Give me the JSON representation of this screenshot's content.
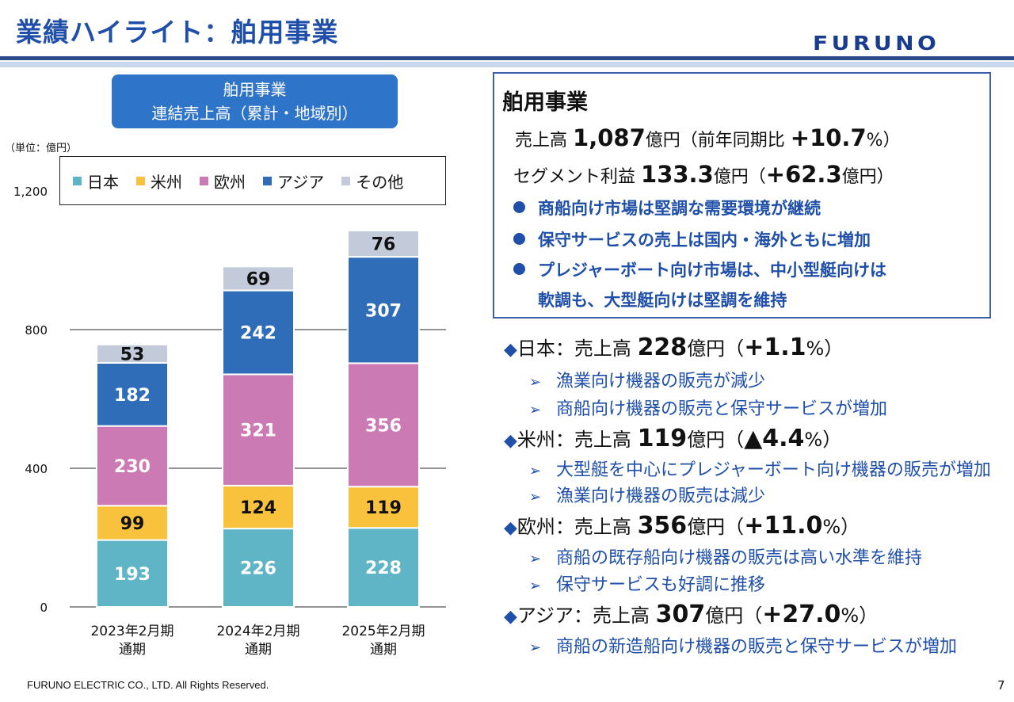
{
  "header": {
    "title": "業績ハイライト：舶用事業",
    "logo_text": "FURUNO"
  },
  "chart_title": {
    "line1": "舶用事業",
    "line2": "連結売上高（累計・地域別）"
  },
  "chart_data": {
    "type": "bar",
    "stacked": true,
    "unit_label": "（単位：億円）",
    "categories": [
      "2023年2月期 通期",
      "2024年2月期 通期",
      "2025年2月期 通期"
    ],
    "category_lines": [
      [
        "2023年2月期",
        "通期"
      ],
      [
        "2024年2月期",
        "通期"
      ],
      [
        "2025年2月期",
        "通期"
      ]
    ],
    "series": [
      {
        "name": "日本",
        "values": [
          193,
          226,
          228
        ],
        "color": "#5fb4c6",
        "label_color": "#ffffff"
      },
      {
        "name": "米州",
        "values": [
          99,
          124,
          119
        ],
        "color": "#f9c23c",
        "label_color": "#111111"
      },
      {
        "name": "欧州",
        "values": [
          230,
          321,
          356
        ],
        "color": "#cc7ab3",
        "label_color": "#ffffff"
      },
      {
        "name": "アジア",
        "values": [
          182,
          242,
          307
        ],
        "color": "#2f6db8",
        "label_color": "#ffffff"
      },
      {
        "name": "その他",
        "values": [
          53,
          69,
          76
        ],
        "color": "#c3cbdb",
        "label_color": "#111111"
      }
    ],
    "ylim": [
      0,
      1200
    ],
    "yticks": [
      0,
      400,
      800,
      1200
    ],
    "ytick_labels": [
      "0",
      "400",
      "800",
      "1,200"
    ],
    "legend_position": "top"
  },
  "summary": {
    "title": "舶用事業",
    "sales_prefix": "売上高",
    "sales_value": "1,087",
    "sales_mid": "億円（前年同期比",
    "sales_change": "+10.7",
    "sales_suffix": "%）",
    "profit_prefix": "セグメント利益",
    "profit_value": "133.3",
    "profit_mid": "億円（",
    "profit_change": "+62.3",
    "profit_suffix": "億円）",
    "bullets": [
      "商船向け市場は堅調な需要環境が継続",
      "保守サービスの売上は国内・海外ともに増加",
      "プレジャーボート向け市場は、中小型艇向けは",
      "軟調も、大型艇向けは堅調を維持"
    ]
  },
  "regions": [
    {
      "name": "日本",
      "label": "売上高",
      "value": "228",
      "unit": "億円（",
      "change": "+1.1",
      "suffix": "%）",
      "notes": [
        "漁業向け機器の販売が減少",
        "商船向け機器の販売と保守サービスが増加"
      ]
    },
    {
      "name": "米州",
      "label": "売上高",
      "value": "119",
      "unit": "億円（",
      "change": "▲4.4",
      "suffix": "%）",
      "notes": [
        "大型艇を中心にプレジャーボート向け機器の販売が増加",
        "漁業向け機器の販売は減少"
      ]
    },
    {
      "name": "欧州",
      "label": "売上高",
      "value": "356",
      "unit": "億円（",
      "change": "+11.0",
      "suffix": "%）",
      "notes": [
        "商船の既存船向け機器の販売は高い水準を維持",
        "保守サービスも好調に推移"
      ]
    },
    {
      "name": "アジア",
      "label": "売上高",
      "value": "307",
      "unit": "億円（",
      "change": "+27.0",
      "suffix": "%）",
      "notes": [
        "商船の新造船向け機器の販売と保守サービスが増加"
      ]
    }
  ],
  "footer": {
    "copyright": "FURUNO ELECTRIC CO., LTD. All Rights Reserved.",
    "page": "7"
  },
  "colors": {
    "accent": "#1f4fa8",
    "rule": "#2b4d8a",
    "rule_light": "#c9d8ec"
  },
  "icons": {
    "region_marker": "diamond-icon",
    "note_marker": "arrow-right-icon",
    "bullet_marker": "dot-icon"
  }
}
